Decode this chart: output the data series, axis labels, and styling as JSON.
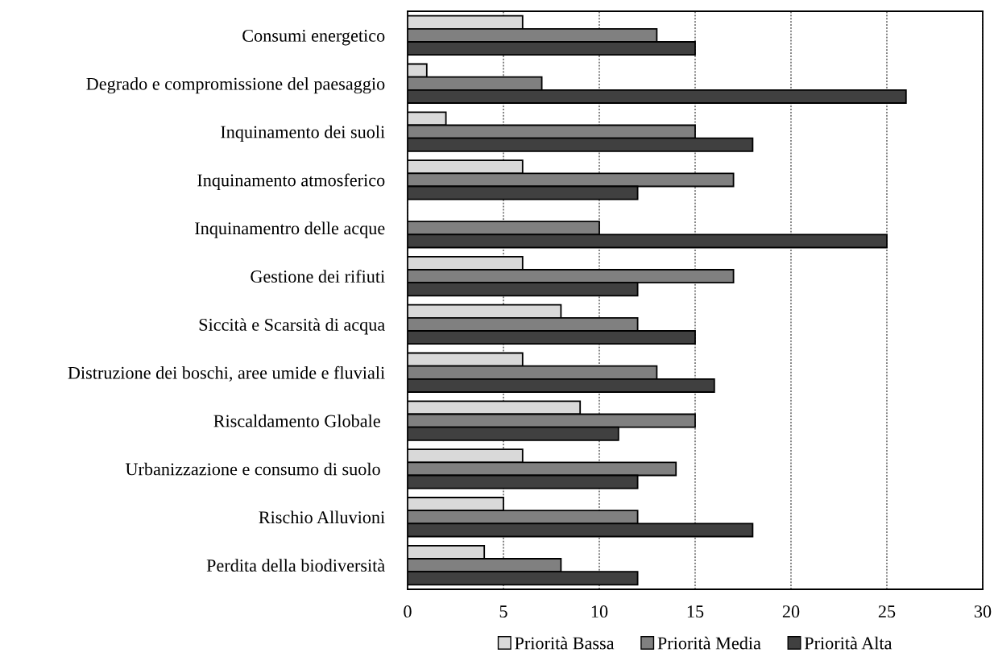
{
  "chart_data": {
    "type": "bar",
    "orientation": "horizontal",
    "categories": [
      "Consumi energetico",
      "Degrado e compromissione del paesaggio",
      "Inquinamento dei suoli",
      "Inquinamento atmosferico",
      "Inquinamentro delle acque",
      "Gestione dei rifiuti",
      "Siccità e Scarsità di acqua",
      "Distruzione dei boschi, aree umide e fluviali",
      "Riscaldamento Globale ",
      "Urbanizzazione e consumo di suolo ",
      "Rischio Alluvioni",
      "Perdita della biodiversità"
    ],
    "series": [
      {
        "name": "Priorità Bassa",
        "color": "#d9d9d9",
        "values": [
          6,
          1,
          2,
          6,
          null,
          6,
          8,
          6,
          9,
          6,
          5,
          4
        ]
      },
      {
        "name": "Priorità Media",
        "color": "#808080",
        "values": [
          13,
          7,
          15,
          17,
          10,
          17,
          12,
          13,
          15,
          14,
          12,
          8
        ]
      },
      {
        "name": "Priorità Alta",
        "color": "#404040",
        "values": [
          15,
          26,
          18,
          12,
          25,
          12,
          15,
          16,
          11,
          12,
          18,
          12
        ]
      }
    ],
    "xlim": [
      0,
      30
    ],
    "xticks": [
      0,
      5,
      10,
      15,
      20,
      25,
      30
    ],
    "grid": "x",
    "legend": "bottom"
  }
}
